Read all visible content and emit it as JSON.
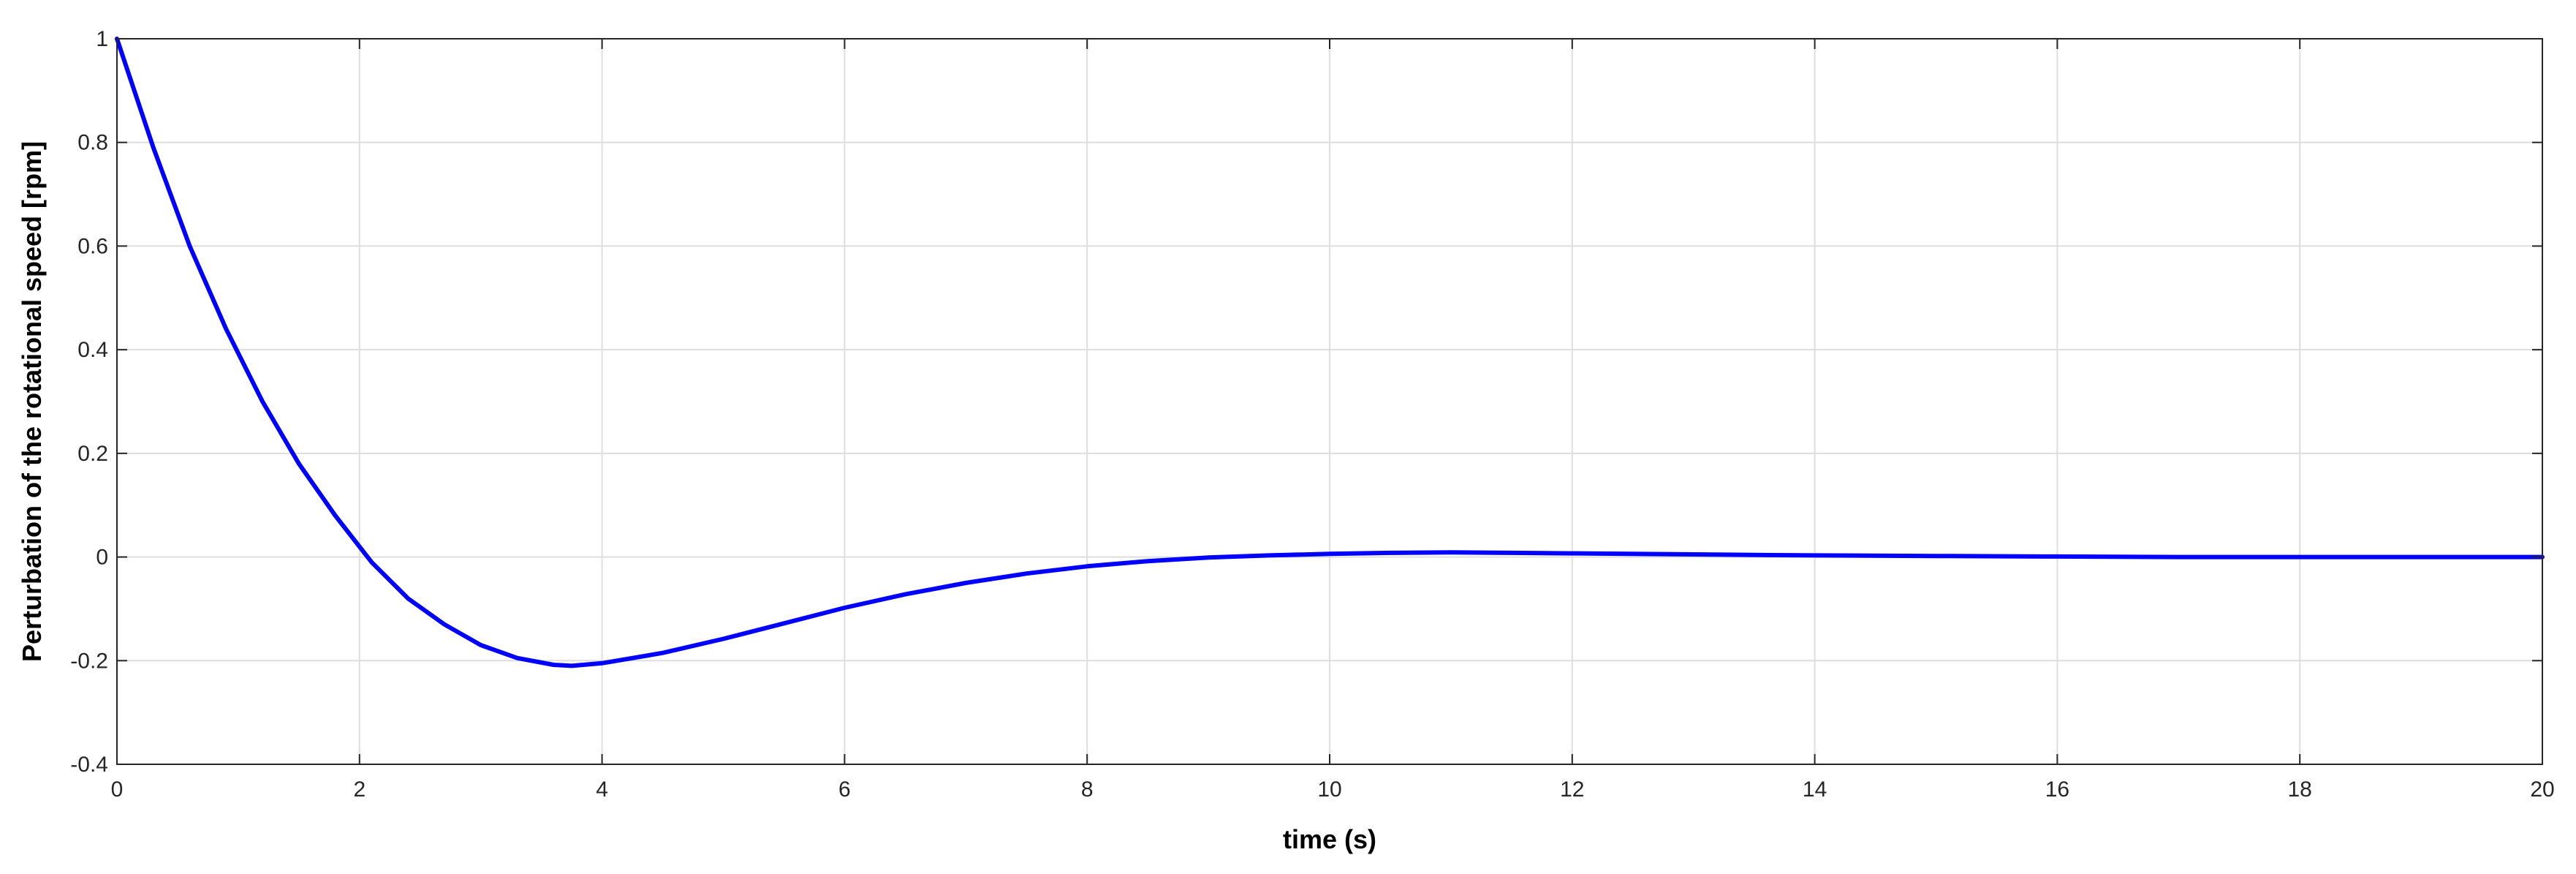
{
  "chart_data": {
    "type": "line",
    "title": "",
    "xlabel": "time (s)",
    "ylabel": "Perturbation of the rotational speed [rpm]",
    "xlim": [
      0,
      20
    ],
    "ylim": [
      -0.4,
      1
    ],
    "xticks": [
      0,
      2,
      4,
      6,
      8,
      10,
      12,
      14,
      16,
      18,
      20
    ],
    "yticks": [
      -0.4,
      -0.2,
      0,
      0.2,
      0.4,
      0.6,
      0.8,
      1
    ],
    "ytick_labels": [
      "-0.4",
      "-0.2",
      "0",
      "0.2",
      "0.4",
      "0.6",
      "0.8",
      "1"
    ],
    "grid": true,
    "legend": "none",
    "series": [
      {
        "color": "#0000ff",
        "x": [
          0,
          0.3,
          0.6,
          0.9,
          1.2,
          1.5,
          1.8,
          2.1,
          2.4,
          2.7,
          3.0,
          3.3,
          3.6,
          3.75,
          4.0,
          4.5,
          5.0,
          5.5,
          6.0,
          6.5,
          7.0,
          7.5,
          8.0,
          8.5,
          9.0,
          9.5,
          10.0,
          10.5,
          11.0,
          11.5,
          12.0,
          13.0,
          14.0,
          15.0,
          16.0,
          17.0,
          18.0,
          19.0,
          20.0
        ],
        "y": [
          1.0,
          0.79,
          0.6,
          0.44,
          0.3,
          0.18,
          0.08,
          -0.01,
          -0.08,
          -0.13,
          -0.17,
          -0.195,
          -0.208,
          -0.21,
          -0.205,
          -0.185,
          -0.158,
          -0.128,
          -0.098,
          -0.072,
          -0.05,
          -0.032,
          -0.018,
          -0.008,
          -0.001,
          0.003,
          0.006,
          0.008,
          0.009,
          0.008,
          0.007,
          0.005,
          0.003,
          0.002,
          0.001,
          0.0,
          0.0,
          0.0,
          0.0
        ]
      }
    ]
  }
}
